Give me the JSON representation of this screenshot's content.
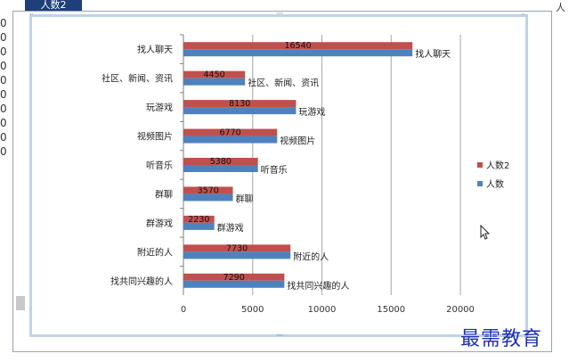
{
  "sheet": {
    "tab_label": "人数2",
    "left_values": [
      "0",
      "0",
      "0",
      "0",
      "0",
      "0",
      "0",
      "0",
      "0",
      "0"
    ],
    "top_right": "人"
  },
  "watermark": "最需教育",
  "colors": {
    "series1": "#c0504d",
    "series2": "#4f81bd"
  },
  "chart_data": {
    "type": "bar",
    "orientation": "horizontal",
    "categories": [
      "找人聊天",
      "社区、新闻、资讯",
      "玩游戏",
      "视频图片",
      "听音乐",
      "群聊",
      "群游戏",
      "附近的人",
      "找共同兴趣的人"
    ],
    "series": [
      {
        "name": "人数2",
        "values": [
          16540,
          4450,
          8130,
          6770,
          5380,
          3570,
          2230,
          7730,
          7290
        ]
      },
      {
        "name": "人数",
        "values": [
          16540,
          4450,
          8130,
          6770,
          5380,
          3570,
          2230,
          7730,
          7290
        ]
      }
    ],
    "data_labels": [
      "16540",
      "4450",
      "8130",
      "6770",
      "5380",
      "3570",
      "2230",
      "7730",
      "7290"
    ],
    "xlim": [
      0,
      20000
    ],
    "xticks": [
      "0",
      "5000",
      "10000",
      "15000",
      "20000"
    ],
    "grid": true,
    "legend_position": "right"
  }
}
